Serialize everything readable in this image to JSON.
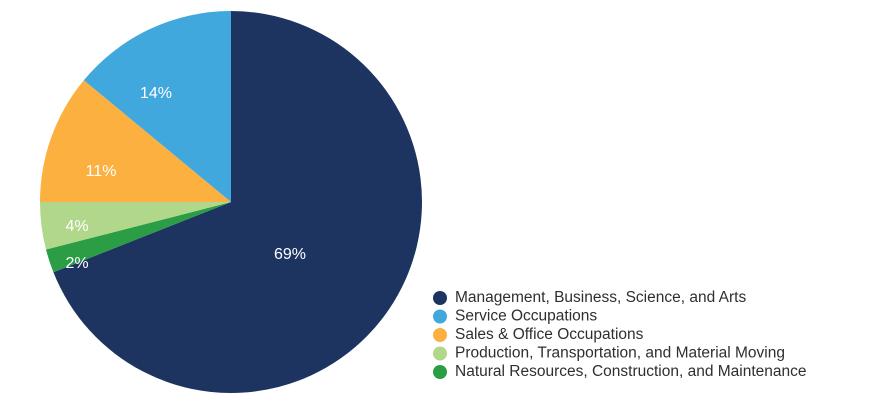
{
  "chart_data": {
    "type": "pie",
    "title": "",
    "legend_position": "bottom-right",
    "slices": [
      {
        "label": "Management, Business, Science, and Arts",
        "value": 69,
        "display": "69%",
        "color": "#1d3461"
      },
      {
        "label": "Natural Resources, Construction, and Maintenance",
        "value": 2,
        "display": "2%",
        "color": "#2a9d45"
      },
      {
        "label": "Production, Transportation, and Material Moving",
        "value": 4,
        "display": "4%",
        "color": "#b1d88a"
      },
      {
        "label": "Sales & Office Occupations",
        "value": 11,
        "display": "11%",
        "color": "#fbb040"
      },
      {
        "label": "Service Occupations",
        "value": 14,
        "display": "14%",
        "color": "#41a8de"
      }
    ],
    "legend": [
      {
        "label": "Management, Business, Science, and Arts",
        "color": "#1d3461"
      },
      {
        "label": "Service Occupations",
        "color": "#41a8de"
      },
      {
        "label": "Sales & Office Occupations",
        "color": "#fbb040"
      },
      {
        "label": "Production, Transportation, and Material Moving",
        "color": "#b1d88a"
      },
      {
        "label": "Natural Resources, Construction, and Maintenance",
        "color": "#2a9d45"
      }
    ]
  }
}
